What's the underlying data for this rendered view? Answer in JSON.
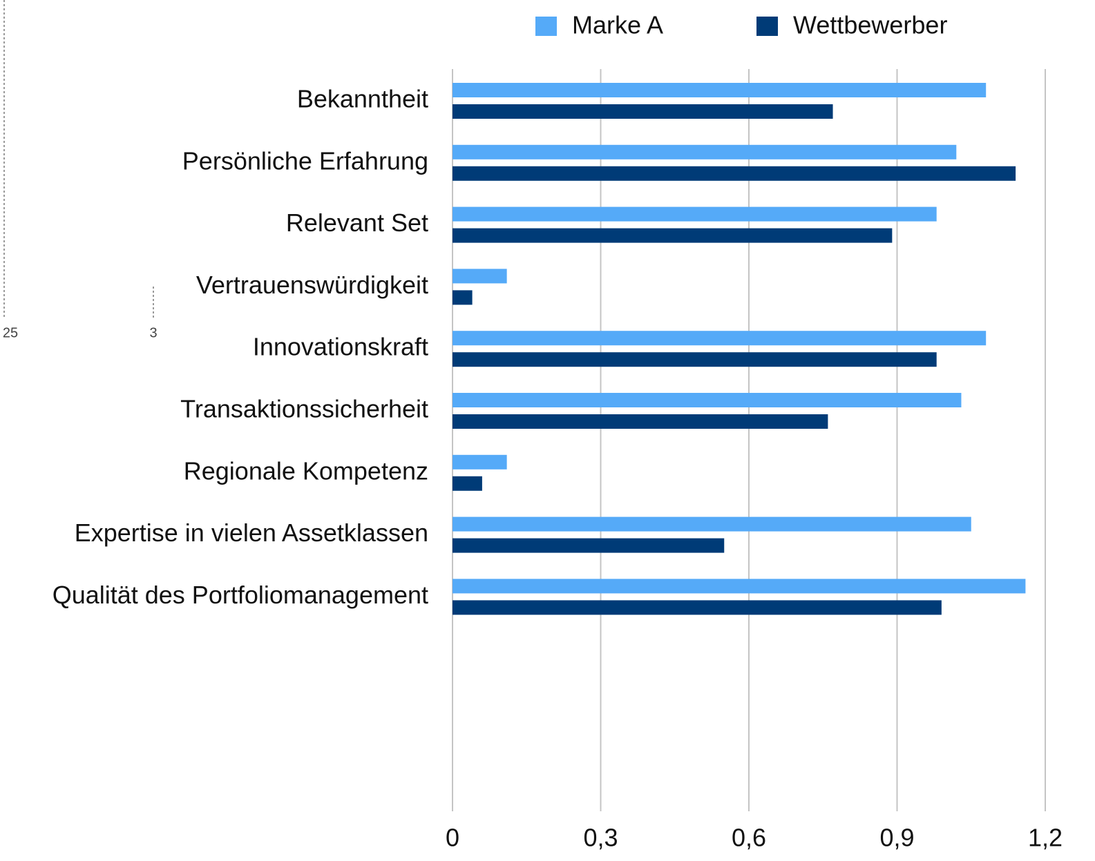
{
  "chart_data": {
    "type": "bar",
    "orientation": "horizontal",
    "categories": [
      "Bekanntheit",
      "Persönliche Erfahrung",
      "Relevant Set",
      "Vertrauenswürdigkeit",
      "Innovationskraft",
      "Transaktionssicherheit",
      "Regionale Kompetenz",
      "Expertise in vielen Assetklassen",
      "Qualität des Portfoliomanagement"
    ],
    "series": [
      {
        "name": "Marke A",
        "color": "#55aaf8",
        "values": [
          1.08,
          1.02,
          0.98,
          0.11,
          1.08,
          1.03,
          0.11,
          1.05,
          1.16
        ]
      },
      {
        "name": "Wettbewerber",
        "color": "#003b77",
        "values": [
          0.77,
          1.14,
          0.89,
          0.04,
          0.98,
          0.76,
          0.06,
          0.55,
          0.99
        ]
      }
    ],
    "xlim": [
      0,
      1.2
    ],
    "xticks": [
      0,
      {
        "value": 0.3,
        "label": "0,3"
      },
      {
        "value": 0.6,
        "label": "0,6"
      },
      {
        "value": 0.9,
        "label": "0,9"
      },
      {
        "value": 1.2,
        "label": "1,2"
      }
    ],
    "grid": true,
    "legend": "top",
    "annotations": [
      "25",
      "3"
    ]
  }
}
